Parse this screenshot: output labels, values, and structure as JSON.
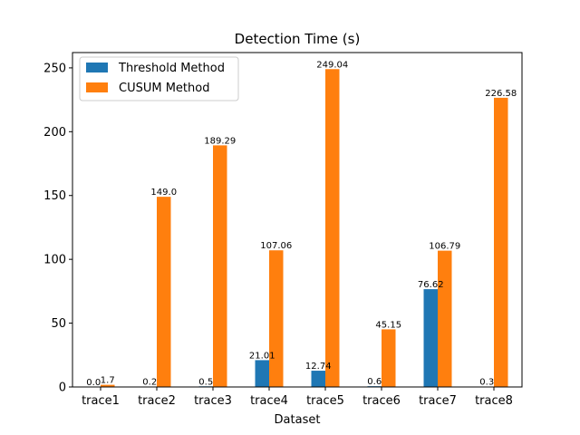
{
  "chart_data": {
    "type": "bar",
    "title": "Detection Time (s)",
    "xlabel": "Dataset",
    "ylabel": "",
    "ylim": [
      0,
      262
    ],
    "yticks": [
      0,
      50,
      100,
      150,
      200,
      250
    ],
    "categories": [
      "trace1",
      "trace2",
      "trace3",
      "trace4",
      "trace5",
      "trace6",
      "trace7",
      "trace8"
    ],
    "series": [
      {
        "name": "Threshold Method",
        "color": "#1f77b4",
        "values": [
          0.0,
          0.2,
          0.5,
          21.01,
          12.74,
          0.6,
          76.62,
          0.3
        ],
        "labels": [
          "0.0",
          "0.2",
          "0.5",
          "21.01",
          "12.74",
          "0.6",
          "76.62",
          "0.3"
        ]
      },
      {
        "name": "CUSUM Method",
        "color": "#ff7f0e",
        "values": [
          1.7,
          149.0,
          189.29,
          107.06,
          249.04,
          45.15,
          106.79,
          226.58
        ],
        "labels": [
          "1.7",
          "149.0",
          "189.29",
          "107.06",
          "249.04",
          "45.15",
          "106.79",
          "226.58"
        ]
      }
    ],
    "legend": "top-left",
    "grid": false
  }
}
